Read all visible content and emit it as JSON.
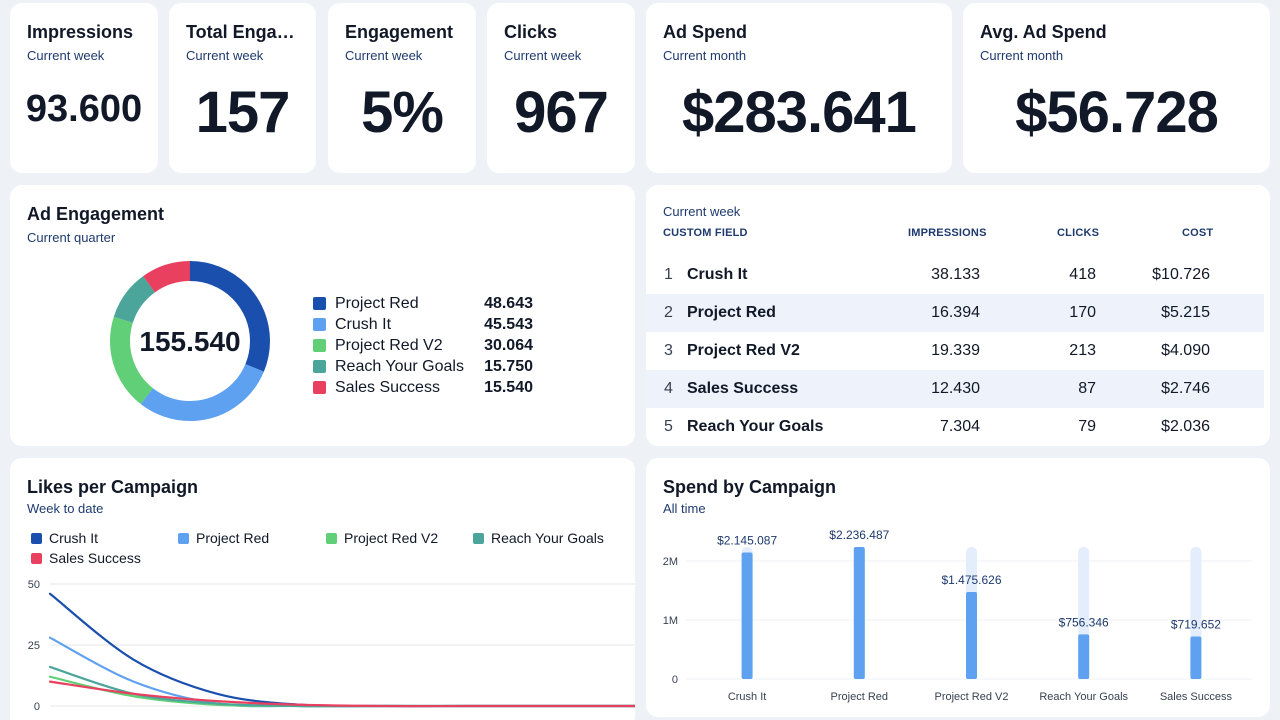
{
  "kpis": [
    {
      "title": "Impressions",
      "subtitle": "Current week",
      "value": "93.600"
    },
    {
      "title": "Total Engagements",
      "subtitle": "Current week",
      "value": "157"
    },
    {
      "title": "Engagement",
      "subtitle": "Current week",
      "value": "5%"
    },
    {
      "title": "Clicks",
      "subtitle": "Current week",
      "value": "967"
    },
    {
      "title": "Ad Spend",
      "subtitle": "Current month",
      "value": "$283.641"
    },
    {
      "title": "Avg. Ad Spend",
      "subtitle": "Current month",
      "value": "$56.728"
    }
  ],
  "engagement": {
    "title": "Ad Engagement",
    "subtitle": "Current quarter",
    "total": "155.540",
    "items": [
      {
        "label": "Project Red",
        "value": "48.643",
        "amount": 48643,
        "color": "#1a4fad"
      },
      {
        "label": "Crush It",
        "value": "45.543",
        "amount": 45543,
        "color": "#5ea1f0"
      },
      {
        "label": "Project Red V2",
        "value": "30.064",
        "amount": 30064,
        "color": "#61cf78"
      },
      {
        "label": "Reach Your Goals",
        "value": "15.750",
        "amount": 15750,
        "color": "#4ba59a"
      },
      {
        "label": "Sales Success",
        "value": "15.540",
        "amount": 15540,
        "color": "#e8405e"
      }
    ]
  },
  "table": {
    "subtitle": "Current week",
    "headers": {
      "field": "CUSTOM FIELD",
      "impressions": "IMPRESSIONS",
      "clicks": "CLICKS",
      "cost": "COST"
    },
    "rows": [
      {
        "idx": "1",
        "name": "Crush It",
        "impressions": "38.133",
        "clicks": "418",
        "cost": "$10.726"
      },
      {
        "idx": "2",
        "name": "Project Red",
        "impressions": "16.394",
        "clicks": "170",
        "cost": "$5.215"
      },
      {
        "idx": "3",
        "name": "Project Red V2",
        "impressions": "19.339",
        "clicks": "213",
        "cost": "$4.090"
      },
      {
        "idx": "4",
        "name": "Sales Success",
        "impressions": "12.430",
        "clicks": "87",
        "cost": "$2.746"
      },
      {
        "idx": "5",
        "name": "Reach Your Goals",
        "impressions": "7.304",
        "clicks": "79",
        "cost": "$2.036"
      }
    ]
  },
  "likes": {
    "title": "Likes per Campaign",
    "subtitle": "Week to date",
    "legend": [
      {
        "label": "Crush It",
        "color": "#1a4fad"
      },
      {
        "label": "Project Red",
        "color": "#5ea1f0"
      },
      {
        "label": "Project Red V2",
        "color": "#61cf78"
      },
      {
        "label": "Reach Your Goals",
        "color": "#4ba59a"
      },
      {
        "label": "Sales Success",
        "color": "#e8405e"
      }
    ]
  },
  "spend": {
    "title": "Spend by Campaign",
    "subtitle": "All time"
  },
  "chart_data": [
    {
      "type": "line",
      "title": "Likes per Campaign",
      "subtitle": "Week to date",
      "x": [
        0,
        1,
        2,
        3,
        4,
        5,
        6,
        7
      ],
      "ylim": [
        0,
        50
      ],
      "yticks": [
        "50",
        "25",
        "0"
      ],
      "grid": true,
      "legend": "top",
      "series": [
        {
          "name": "Crush It",
          "color": "#1a4fad",
          "values": [
            46,
            19,
            5,
            0.5,
            0,
            0,
            0,
            0
          ]
        },
        {
          "name": "Project Red",
          "color": "#5ea1f0",
          "values": [
            28,
            10,
            1,
            0,
            0,
            0,
            0,
            0
          ]
        },
        {
          "name": "Project Red V2",
          "color": "#61cf78",
          "values": [
            12,
            4,
            0.5,
            0,
            0,
            0,
            0,
            0
          ]
        },
        {
          "name": "Reach Your Goals",
          "color": "#4ba59a",
          "values": [
            16,
            5,
            1,
            0,
            0,
            0,
            0,
            0
          ]
        },
        {
          "name": "Sales Success",
          "color": "#e8405e",
          "values": [
            10,
            5,
            2,
            0.5,
            0,
            0,
            0,
            0
          ]
        }
      ]
    },
    {
      "type": "bar",
      "title": "Spend by Campaign",
      "subtitle": "All time",
      "categories": [
        "Crush It",
        "Project Red",
        "Project Red V2",
        "Reach Your Goals",
        "Sales Success"
      ],
      "values": [
        2145087,
        2236487,
        1475626,
        756346,
        719652
      ],
      "labels": [
        "$2.145.087",
        "$2.236.487",
        "$1.475.626",
        "$756.346",
        "$719.652"
      ],
      "ylim": [
        0,
        2300000
      ],
      "yticks": [
        {
          "value": 0,
          "label": "0"
        },
        {
          "value": 1000000,
          "label": "1M"
        },
        {
          "value": 2000000,
          "label": "2M"
        }
      ],
      "track_max": 2236487,
      "color": "#5ea1f0",
      "track_color": "#e3edfb"
    }
  ]
}
